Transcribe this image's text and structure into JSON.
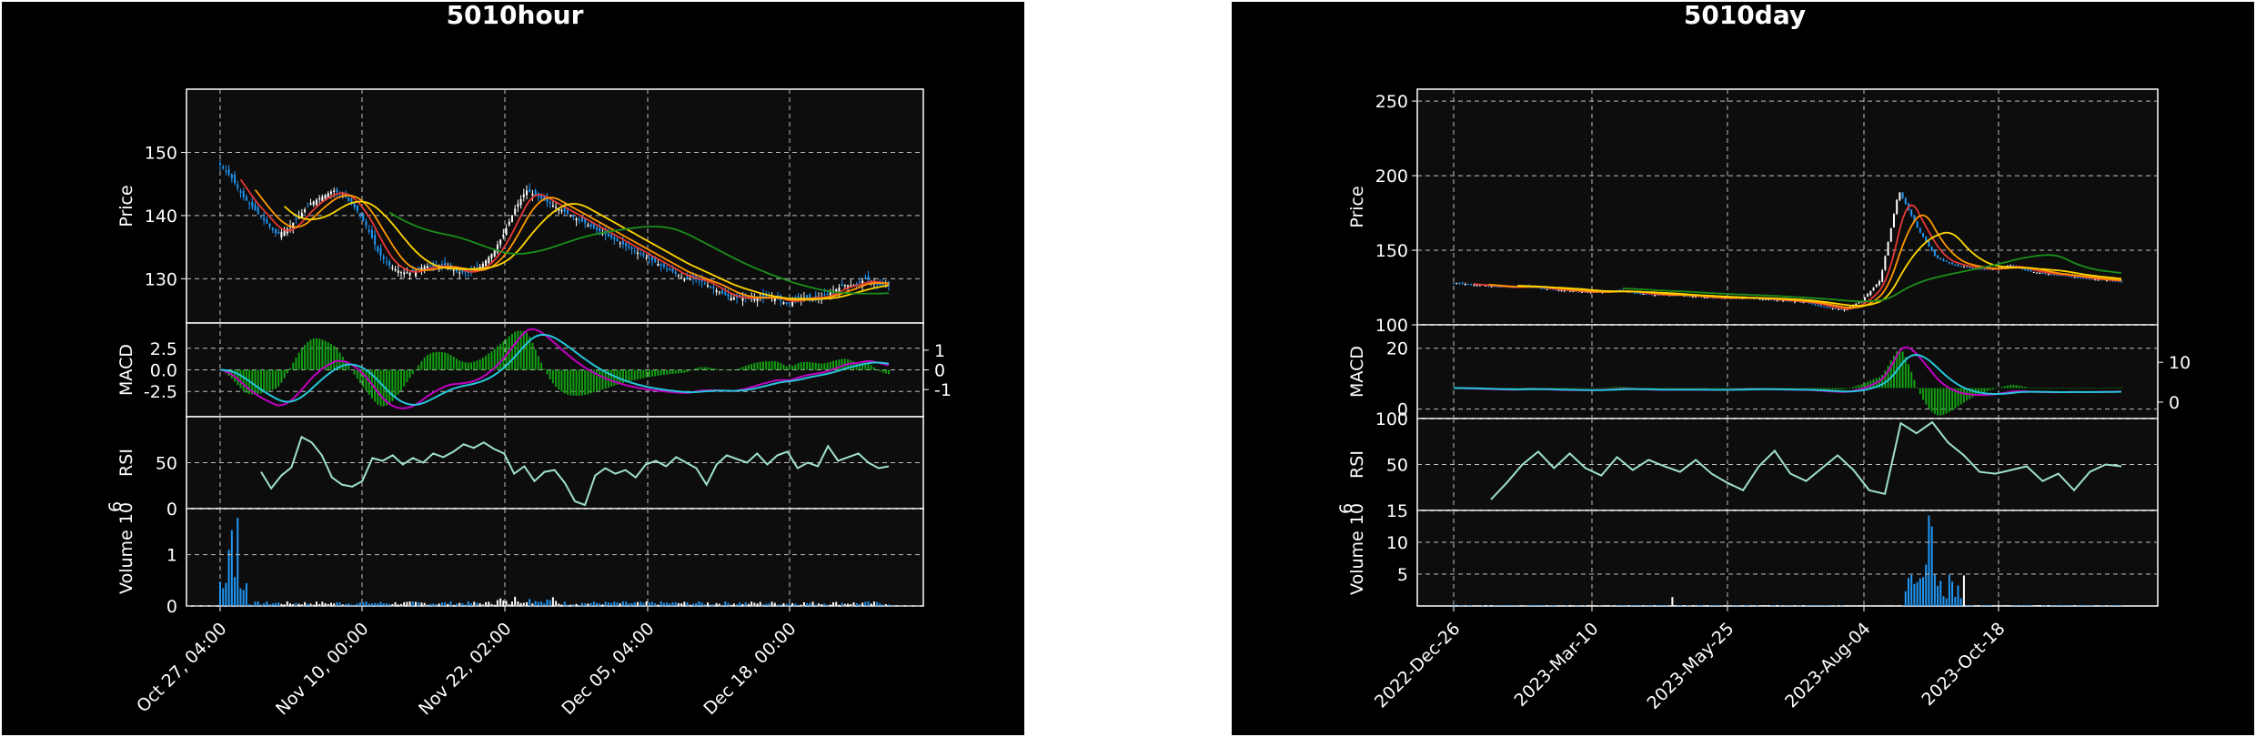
{
  "colors": {
    "background": "#000000",
    "plot_bg": "#0d0d0d",
    "grid": "#bfbfbf",
    "up": "#ffffff",
    "down": "#2196f3",
    "ma_red": "#e53935",
    "ma_orange": "#ff9800",
    "ma_yellow": "#ffd600",
    "ma_green": "#1b8f1b",
    "macd_line": "#c000c0",
    "signal_line": "#26c6da",
    "hist": "#12a012",
    "rsi": "#9fe0d0"
  },
  "chart_data": [
    {
      "type": "candlestick",
      "title": "5010hour",
      "x_tick_labels": [
        "Oct 27, 04:00",
        "Nov 10, 00:00",
        "Nov 22, 02:00",
        "Dec 05, 04:00",
        "Dec 18, 00:00"
      ],
      "price": {
        "ylabel": "Price",
        "ylim": [
          123,
          160
        ],
        "yticks": [
          "130",
          "140",
          "150"
        ],
        "close_approx": [
          148,
          146,
          143,
          141,
          139,
          137,
          138,
          140,
          142,
          143,
          144,
          143,
          141,
          138,
          134,
          132,
          131,
          131,
          132,
          132,
          132,
          131,
          131,
          132,
          134,
          137,
          141,
          144,
          143,
          142,
          141,
          140,
          139,
          138,
          137,
          136,
          135,
          134,
          133,
          132,
          131,
          130,
          130,
          129,
          128,
          127,
          127,
          127,
          127,
          127,
          126,
          127,
          127,
          127,
          128,
          129,
          129,
          130,
          129,
          129
        ]
      },
      "macd": {
        "ylabel": "MACD",
        "yticks": [
          "-2.5",
          "0.0",
          "2.5"
        ],
        "right_yticks": [
          "-1",
          "0",
          "1"
        ]
      },
      "rsi": {
        "ylabel": "RSI",
        "ylim": [
          0,
          100
        ],
        "yticks": [
          "0",
          "50"
        ],
        "values_approx": [
          40,
          22,
          36,
          45,
          78,
          72,
          58,
          34,
          26,
          24,
          30,
          55,
          52,
          58,
          48,
          55,
          50,
          60,
          56,
          62,
          70,
          66,
          72,
          65,
          60,
          38,
          46,
          30,
          40,
          42,
          28,
          8,
          4,
          36,
          44,
          38,
          42,
          34,
          48,
          52,
          46,
          56,
          50,
          44,
          26,
          48,
          58,
          54,
          50,
          60,
          48,
          58,
          62,
          44,
          50,
          46,
          68,
          52,
          56,
          60,
          50,
          44,
          46
        ]
      },
      "volume": {
        "ylabel": "Volume",
        "exponent": "6",
        "ylim": [
          0,
          1.9
        ],
        "yticks": [
          "0",
          "1"
        ]
      }
    },
    {
      "type": "candlestick",
      "title": "5010day",
      "x_tick_labels": [
        "2022-Dec-26",
        "2023-Mar-10",
        "2023-May-25",
        "2023-Aug-04",
        "2023-Oct-18"
      ],
      "price": {
        "ylabel": "Price",
        "ylim": [
          100,
          258
        ],
        "yticks": [
          "100",
          "150",
          "200",
          "250"
        ],
        "close_approx": [
          128,
          127,
          126,
          125,
          126,
          124,
          123,
          122,
          122,
          123,
          121,
          120,
          120,
          119,
          118,
          118,
          118,
          117,
          116,
          115,
          112,
          110,
          116,
          130,
          190,
          165,
          145,
          140,
          138,
          137,
          140,
          136,
          134,
          133,
          131,
          130,
          129
        ]
      },
      "macd": {
        "ylabel": "MACD",
        "yticks": [
          "0",
          "20"
        ],
        "right_yticks": [
          "0",
          "10"
        ]
      },
      "rsi": {
        "ylabel": "RSI",
        "ylim": [
          0,
          100
        ],
        "yticks": [
          "50",
          "100"
        ],
        "values_approx": [
          12,
          30,
          50,
          64,
          46,
          62,
          46,
          38,
          58,
          44,
          55,
          48,
          42,
          55,
          40,
          30,
          22,
          48,
          65,
          40,
          32,
          46,
          60,
          44,
          22,
          18,
          95,
          84,
          96,
          74,
          60,
          42,
          40,
          44,
          48,
          32,
          40,
          22,
          42,
          50,
          48
        ]
      },
      "volume": {
        "ylabel": "Volume",
        "exponent": "6",
        "ylim": [
          0,
          15
        ],
        "yticks": [
          "5",
          "10",
          "15"
        ]
      }
    }
  ]
}
